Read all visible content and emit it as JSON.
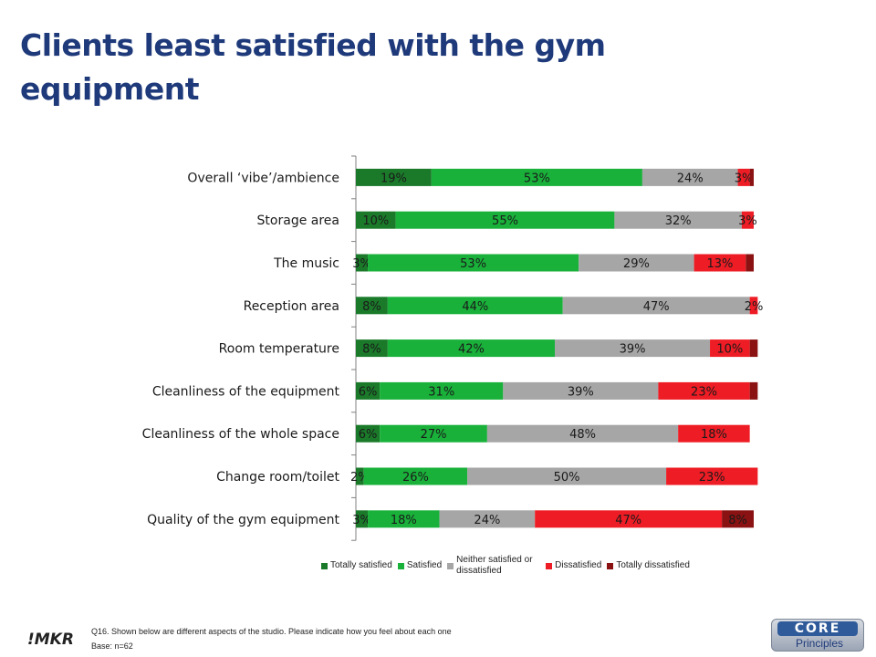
{
  "title": "Clients least satisfied with the gym equipment",
  "chart_data": {
    "type": "bar",
    "orientation": "horizontal",
    "stacked": true,
    "title": "Clients least satisfied with the gym equipment",
    "categories": [
      "Overall ‘vibe’/ambience",
      "Storage area",
      "The music",
      "Reception area",
      "Room temperature",
      "Cleanliness of the equipment",
      "Cleanliness of the whole space",
      "Change room/toilet",
      "Quality of the gym equipment"
    ],
    "series": [
      {
        "name": "Totally satisfied",
        "color": "#1a7a2a",
        "values": [
          19,
          10,
          3,
          8,
          8,
          6,
          6,
          2,
          3
        ]
      },
      {
        "name": "Satisfied",
        "color": "#19b13a",
        "values": [
          53,
          55,
          53,
          44,
          42,
          31,
          27,
          26,
          18
        ]
      },
      {
        "name": "Neither satisfied or dissatisfied",
        "color": "#a6a6a6",
        "values": [
          24,
          32,
          29,
          47,
          39,
          39,
          48,
          50,
          24
        ]
      },
      {
        "name": "Dissatisfied",
        "color": "#ee1c24",
        "values": [
          3,
          3,
          13,
          2,
          10,
          23,
          18,
          23,
          47
        ]
      },
      {
        "name": "Totally dissatisfied",
        "color": "#8b1212",
        "values": [
          1,
          0,
          2,
          0,
          2,
          2,
          0,
          0,
          8
        ]
      }
    ],
    "labels": [
      [
        "19%",
        "53%",
        "24%",
        "3%",
        ""
      ],
      [
        "10%",
        "55%",
        "32%",
        "3%",
        ""
      ],
      [
        "3%",
        "53%",
        "29%",
        "13%",
        ""
      ],
      [
        "8%",
        "44%",
        "47%",
        "2%",
        ""
      ],
      [
        "8%",
        "42%",
        "39%",
        "10%",
        ""
      ],
      [
        "6%",
        "31%",
        "39%",
        "23%",
        ""
      ],
      [
        "6%",
        "27%",
        "48%",
        "18%",
        ""
      ],
      [
        "2%",
        "26%",
        "50%",
        "23%",
        ""
      ],
      [
        "3%",
        "18%",
        "24%",
        "47%",
        "8%"
      ]
    ],
    "xlim": [
      0,
      100
    ],
    "legend_position": "bottom",
    "grid": false
  },
  "legend": [
    {
      "label": "Totally satisfied",
      "color": "#1a7a2a"
    },
    {
      "label": "Satisfied",
      "color": "#19b13a"
    },
    {
      "label": "Neither satisfied or dissatisfied",
      "color": "#a6a6a6"
    },
    {
      "label": "Dissatisfied",
      "color": "#ee1c24"
    },
    {
      "label": "Totally dissatisfied",
      "color": "#8b1212"
    }
  ],
  "footer": {
    "question": "Q16. Shown below are different aspects of the studio. Please indicate how you feel about each one",
    "base": "Base: n=62",
    "logo_left": "!MKR",
    "logo_right_top": "CORE",
    "logo_right_bottom": "Principles"
  }
}
